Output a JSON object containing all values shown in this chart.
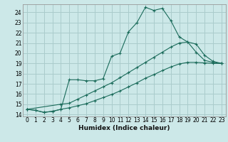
{
  "xlabel": "Humidex (Indice chaleur)",
  "bg_color": "#cce8e8",
  "grid_color": "#aacccc",
  "line_color": "#1a6b5a",
  "xlim": [
    -0.5,
    23.5
  ],
  "ylim": [
    13.8,
    24.8
  ],
  "xticks": [
    0,
    1,
    2,
    3,
    4,
    5,
    6,
    7,
    8,
    9,
    10,
    11,
    12,
    13,
    14,
    15,
    16,
    17,
    18,
    19,
    20,
    21,
    22,
    23
  ],
  "yticks": [
    14,
    15,
    16,
    17,
    18,
    19,
    20,
    21,
    22,
    23,
    24
  ],
  "line1_x": [
    0,
    1,
    2,
    3,
    4,
    5,
    6,
    7,
    8,
    9,
    10,
    11,
    12,
    13,
    14,
    15,
    16,
    17,
    18,
    19,
    20,
    21,
    22,
    23
  ],
  "line1_y": [
    14.5,
    14.4,
    14.2,
    14.3,
    14.5,
    17.4,
    17.4,
    17.3,
    17.3,
    17.5,
    19.7,
    20.0,
    22.1,
    23.0,
    24.5,
    24.2,
    24.4,
    23.2,
    21.6,
    21.1,
    20.1,
    19.3,
    19.1,
    19.0
  ],
  "line2_x": [
    0,
    4,
    5,
    6,
    7,
    8,
    9,
    10,
    11,
    12,
    13,
    14,
    15,
    16,
    17,
    18,
    19,
    20,
    21,
    22,
    23
  ],
  "line2_y": [
    14.5,
    15.0,
    15.1,
    15.5,
    15.9,
    16.3,
    16.7,
    17.1,
    17.6,
    18.1,
    18.6,
    19.1,
    19.6,
    20.1,
    20.6,
    21.0,
    21.1,
    20.9,
    19.8,
    19.2,
    19.0
  ],
  "line3_x": [
    0,
    1,
    2,
    3,
    4,
    5,
    6,
    7,
    8,
    9,
    10,
    11,
    12,
    13,
    14,
    15,
    16,
    17,
    18,
    19,
    20,
    21,
    22,
    23
  ],
  "line3_y": [
    14.5,
    14.4,
    14.2,
    14.3,
    14.5,
    14.65,
    14.85,
    15.05,
    15.35,
    15.65,
    15.95,
    16.3,
    16.7,
    17.1,
    17.55,
    17.9,
    18.3,
    18.65,
    18.95,
    19.1,
    19.1,
    19.05,
    19.0,
    19.0
  ]
}
